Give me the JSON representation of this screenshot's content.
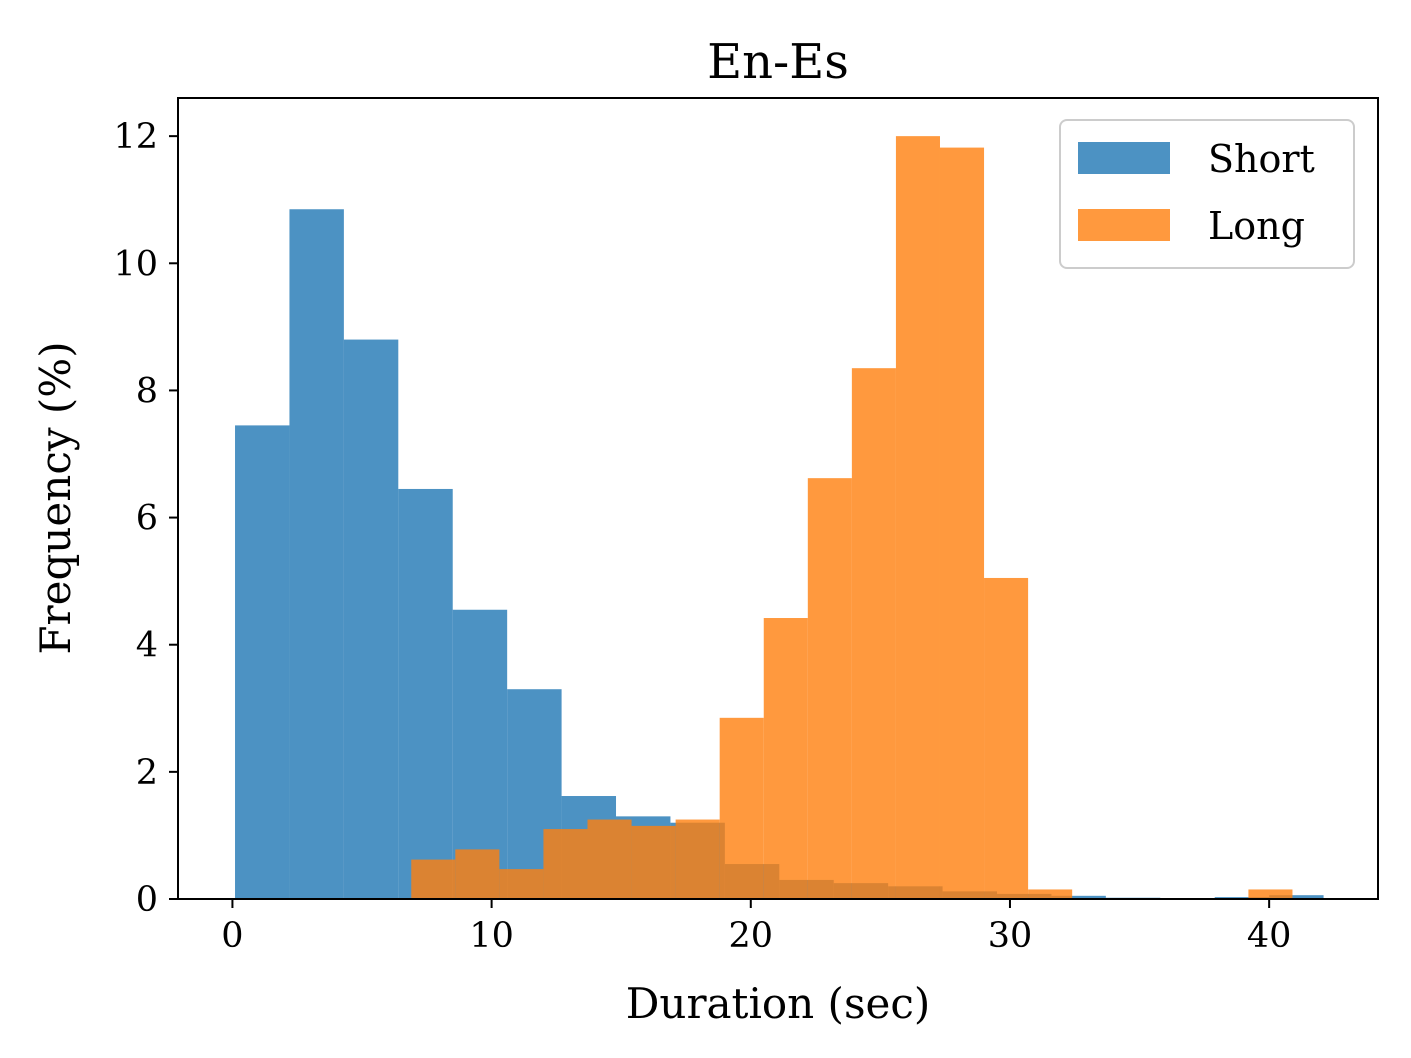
{
  "chart_data": {
    "type": "histogram",
    "title": "En-Es",
    "xlabel": "Duration (sec)",
    "ylabel": "Frequency (%)",
    "xlim": [
      -2.1,
      44.2
    ],
    "ylim": [
      0,
      12.6
    ],
    "xticks": [
      0,
      10,
      20,
      30,
      40
    ],
    "yticks": [
      0,
      2,
      4,
      6,
      8,
      10,
      12
    ],
    "xtick_labels": [
      "0",
      "10",
      "20",
      "30",
      "40"
    ],
    "ytick_labels": [
      "0",
      "2",
      "4",
      "6",
      "8",
      "10",
      "12"
    ],
    "grid": false,
    "legend_position": "top-right",
    "series": [
      {
        "name": "Short",
        "color": "#1f77b4",
        "opacity": 0.8,
        "bins": [
          {
            "start": 0.1,
            "end": 2.2,
            "value": 7.45
          },
          {
            "start": 2.2,
            "end": 4.3,
            "value": 10.85
          },
          {
            "start": 4.3,
            "end": 6.4,
            "value": 8.8
          },
          {
            "start": 6.4,
            "end": 8.5,
            "value": 6.45
          },
          {
            "start": 8.5,
            "end": 10.6,
            "value": 4.55
          },
          {
            "start": 10.6,
            "end": 12.7,
            "value": 3.3
          },
          {
            "start": 12.7,
            "end": 14.8,
            "value": 1.62
          },
          {
            "start": 14.8,
            "end": 16.9,
            "value": 1.3
          },
          {
            "start": 16.9,
            "end": 19.0,
            "value": 1.2
          },
          {
            "start": 19.0,
            "end": 21.1,
            "value": 0.55
          },
          {
            "start": 21.1,
            "end": 23.2,
            "value": 0.3
          },
          {
            "start": 23.2,
            "end": 25.3,
            "value": 0.25
          },
          {
            "start": 25.3,
            "end": 27.4,
            "value": 0.2
          },
          {
            "start": 27.4,
            "end": 29.5,
            "value": 0.12
          },
          {
            "start": 29.5,
            "end": 31.6,
            "value": 0.08
          },
          {
            "start": 31.6,
            "end": 33.7,
            "value": 0.05
          },
          {
            "start": 33.7,
            "end": 35.8,
            "value": 0.02
          },
          {
            "start": 35.8,
            "end": 37.9,
            "value": 0.01
          },
          {
            "start": 37.9,
            "end": 40.0,
            "value": 0.03
          },
          {
            "start": 40.0,
            "end": 42.1,
            "value": 0.06
          }
        ]
      },
      {
        "name": "Long",
        "color": "#ff7f0e",
        "opacity": 0.8,
        "bins": [
          {
            "start": 6.9,
            "end": 8.6,
            "value": 0.62
          },
          {
            "start": 8.6,
            "end": 10.3,
            "value": 0.78
          },
          {
            "start": 10.3,
            "end": 12.0,
            "value": 0.47
          },
          {
            "start": 12.0,
            "end": 13.7,
            "value": 1.1
          },
          {
            "start": 13.7,
            "end": 15.4,
            "value": 1.25
          },
          {
            "start": 15.4,
            "end": 17.1,
            "value": 1.15
          },
          {
            "start": 17.1,
            "end": 18.8,
            "value": 1.25
          },
          {
            "start": 18.8,
            "end": 20.5,
            "value": 2.85
          },
          {
            "start": 20.5,
            "end": 22.2,
            "value": 4.42
          },
          {
            "start": 22.2,
            "end": 23.9,
            "value": 6.62
          },
          {
            "start": 23.9,
            "end": 25.6,
            "value": 8.35
          },
          {
            "start": 25.6,
            "end": 27.3,
            "value": 12.0
          },
          {
            "start": 27.3,
            "end": 29.0,
            "value": 11.82
          },
          {
            "start": 29.0,
            "end": 30.7,
            "value": 5.05
          },
          {
            "start": 30.7,
            "end": 32.4,
            "value": 0.15
          },
          {
            "start": 32.4,
            "end": 34.1,
            "value": 0.0
          },
          {
            "start": 34.1,
            "end": 35.8,
            "value": 0.0
          },
          {
            "start": 35.8,
            "end": 37.5,
            "value": 0.0
          },
          {
            "start": 37.5,
            "end": 39.2,
            "value": 0.0
          },
          {
            "start": 39.2,
            "end": 40.9,
            "value": 0.15
          }
        ]
      }
    ]
  }
}
